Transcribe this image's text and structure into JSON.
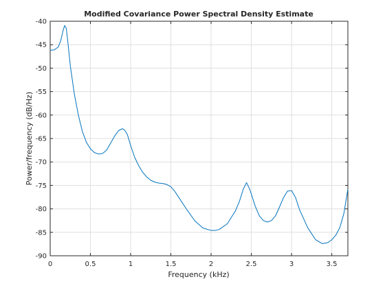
{
  "chart_data": {
    "type": "line",
    "title": "Modified Covariance Power Spectral Density Estimate",
    "xlabel": "Frequency (kHz)",
    "ylabel": "Power/frequency (dB/Hz)",
    "xlim": [
      0,
      3.7
    ],
    "ylim": [
      -90,
      -40
    ],
    "xticks": [
      0,
      0.5,
      1,
      1.5,
      2,
      2.5,
      3,
      3.5
    ],
    "xtick_labels": [
      "0",
      "0.5",
      "1",
      "1.5",
      "2",
      "2.5",
      "3",
      "3.5"
    ],
    "yticks": [
      -90,
      -85,
      -80,
      -75,
      -70,
      -65,
      -60,
      -55,
      -50,
      -45,
      -40
    ],
    "ytick_labels": [
      "-90",
      "-85",
      "-80",
      "-75",
      "-70",
      "-65",
      "-60",
      "-55",
      "-50",
      "-45",
      "-40"
    ],
    "grid": true,
    "series": [
      {
        "color": "#0072bd",
        "x": [
          0,
          0.05,
          0.1,
          0.13,
          0.16,
          0.18,
          0.2,
          0.22,
          0.25,
          0.3,
          0.35,
          0.4,
          0.45,
          0.5,
          0.55,
          0.6,
          0.65,
          0.7,
          0.75,
          0.8,
          0.85,
          0.9,
          0.93,
          0.96,
          1.0,
          1.05,
          1.1,
          1.15,
          1.2,
          1.25,
          1.3,
          1.35,
          1.4,
          1.45,
          1.5,
          1.55,
          1.6,
          1.7,
          1.8,
          1.9,
          2.0,
          2.05,
          2.1,
          2.2,
          2.3,
          2.35,
          2.4,
          2.44,
          2.48,
          2.55,
          2.6,
          2.65,
          2.7,
          2.75,
          2.8,
          2.85,
          2.9,
          2.95,
          3.0,
          3.05,
          3.1,
          3.2,
          3.3,
          3.38,
          3.45,
          3.5,
          3.55,
          3.6,
          3.65,
          3.7
        ],
        "y": [
          -46.2,
          -46.1,
          -45.5,
          -44.2,
          -42.0,
          -40.9,
          -41.5,
          -44.5,
          -49.5,
          -55.5,
          -60.0,
          -63.5,
          -65.8,
          -67.2,
          -68.0,
          -68.3,
          -68.2,
          -67.5,
          -66.0,
          -64.5,
          -63.3,
          -62.9,
          -63.3,
          -64.2,
          -66.5,
          -69.0,
          -70.8,
          -72.2,
          -73.2,
          -73.9,
          -74.3,
          -74.5,
          -74.6,
          -74.8,
          -75.3,
          -76.3,
          -77.6,
          -80.2,
          -82.6,
          -84.1,
          -84.6,
          -84.6,
          -84.4,
          -83.2,
          -80.5,
          -78.5,
          -75.8,
          -74.4,
          -75.8,
          -79.5,
          -81.5,
          -82.5,
          -82.8,
          -82.5,
          -81.5,
          -79.6,
          -77.6,
          -76.2,
          -76.1,
          -77.6,
          -80.2,
          -84.0,
          -86.6,
          -87.4,
          -87.2,
          -86.6,
          -85.6,
          -84.0,
          -81.0,
          -75.8
        ]
      }
    ]
  }
}
